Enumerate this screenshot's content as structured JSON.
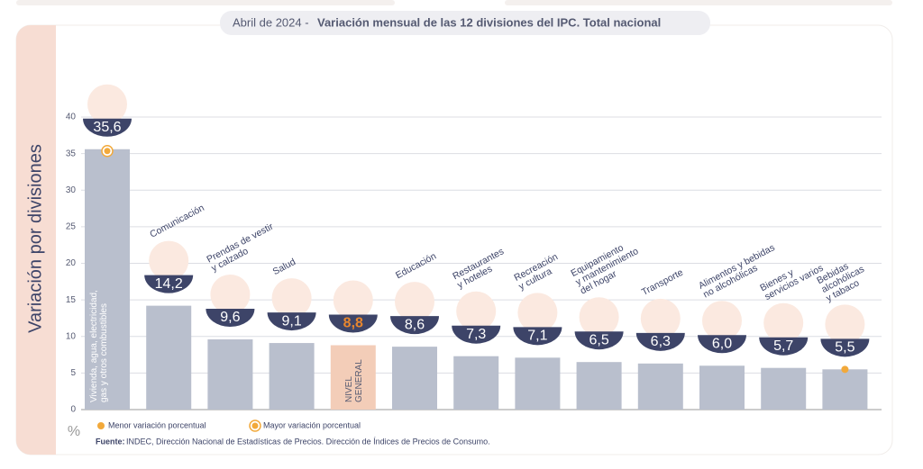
{
  "chart_data": {
    "type": "bar",
    "title_prefix": "Abril de 2024 -",
    "title": "Variación mensual de las 12 divisiones del IPC. Total nacional",
    "y_label": "Variación por divisiones",
    "y_unit": "%",
    "categories": [
      "Vivienda, agua, electricidad,\ngas y otros combustibles",
      "Comunicación",
      "Prendas de vestir\ny calzado",
      "Salud",
      "NIVEL\nGENERAL",
      "Educación",
      "Restaurantes\ny hoteles",
      "Recreación\ny cultura",
      "Equipamiento\ny mantenimiento\ndel hogar",
      "Transporte",
      "Alimentos y bebidas\nno alcohólicas",
      "Bienes y\nservicios varios",
      "Bebidas\nalcohólicas\ny tabaco"
    ],
    "values": [
      35.6,
      14.2,
      9.6,
      9.1,
      8.8,
      8.6,
      7.3,
      7.1,
      6.5,
      6.3,
      6.0,
      5.7,
      5.5
    ],
    "value_labels": [
      "35,6",
      "14,2",
      "9,6",
      "9,1",
      "8,8",
      "8,6",
      "7,3",
      "7,1",
      "6,5",
      "6,3",
      "6,0",
      "5,7",
      "5,5"
    ],
    "colors": [
      "#b9bfcd",
      "#b9bfcd",
      "#b9bfcd",
      "#b9bfcd",
      "#f3cdb8",
      "#b9bfcd",
      "#b9bfcd",
      "#b9bfcd",
      "#b9bfcd",
      "#b9bfcd",
      "#b9bfcd",
      "#b9bfcd",
      "#b9bfcd"
    ],
    "ylim": [
      0,
      40
    ],
    "yticks": [
      0,
      5,
      10,
      15,
      20,
      25,
      30,
      35,
      40
    ],
    "grid": true,
    "marker_color": "#f2a93b",
    "legend": [
      "Menor variación porcentual",
      "Mayor variación porcentual"
    ],
    "source_label": "Fuente:",
    "source": "INDEC, Dirección Nacional de Estadísticas de Precios. Dirección de Índices de Precios de Consumo."
  }
}
